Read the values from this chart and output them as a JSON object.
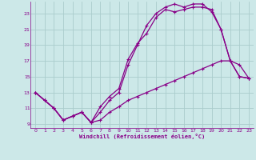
{
  "xlabel": "Windchill (Refroidissement éolien,°C)",
  "bg_color": "#cce8e8",
  "line_color": "#880088",
  "grid_color": "#aacccc",
  "xlim": [
    -0.5,
    23.5
  ],
  "ylim": [
    8.5,
    24.5
  ],
  "yticks": [
    9,
    11,
    13,
    15,
    17,
    19,
    21,
    23
  ],
  "xticks": [
    0,
    1,
    2,
    3,
    4,
    5,
    6,
    7,
    8,
    9,
    10,
    11,
    12,
    13,
    14,
    15,
    16,
    17,
    18,
    19,
    20,
    21,
    22,
    23
  ],
  "line1_x": [
    0,
    1,
    2,
    3,
    4,
    5,
    6,
    7,
    8,
    9,
    10,
    11,
    12,
    13,
    14,
    15,
    16,
    17,
    18,
    19,
    20,
    21,
    22,
    23
  ],
  "line1_y": [
    13,
    12,
    11,
    9.5,
    10,
    10.5,
    9.2,
    11.2,
    12.5,
    13.5,
    17.2,
    19.2,
    20.5,
    22.5,
    23.5,
    23.2,
    23.5,
    23.8,
    23.8,
    23.5,
    21,
    17,
    15,
    14.8
  ],
  "line2_x": [
    0,
    1,
    2,
    3,
    4,
    5,
    6,
    7,
    8,
    9,
    10,
    11,
    12,
    13,
    14,
    15,
    16,
    17,
    18,
    19,
    20,
    21,
    22,
    23
  ],
  "line2_y": [
    13,
    12,
    11,
    9.5,
    10,
    10.5,
    9.2,
    10.5,
    12,
    13.0,
    16.5,
    19.0,
    21.5,
    23.0,
    23.8,
    24.2,
    23.8,
    24.2,
    24.2,
    23.2,
    21.0,
    17.0,
    15.0,
    14.8
  ],
  "line3_x": [
    0,
    1,
    2,
    3,
    4,
    5,
    6,
    7,
    8,
    9,
    10,
    11,
    12,
    13,
    14,
    15,
    16,
    17,
    18,
    19,
    20,
    21,
    22,
    23
  ],
  "line3_y": [
    13,
    12,
    11,
    9.5,
    10,
    10.5,
    9.2,
    9.5,
    10.5,
    11.2,
    12,
    12.5,
    13,
    13.5,
    14,
    14.5,
    15,
    15.5,
    16,
    16.5,
    17,
    17,
    16.5,
    14.8
  ]
}
